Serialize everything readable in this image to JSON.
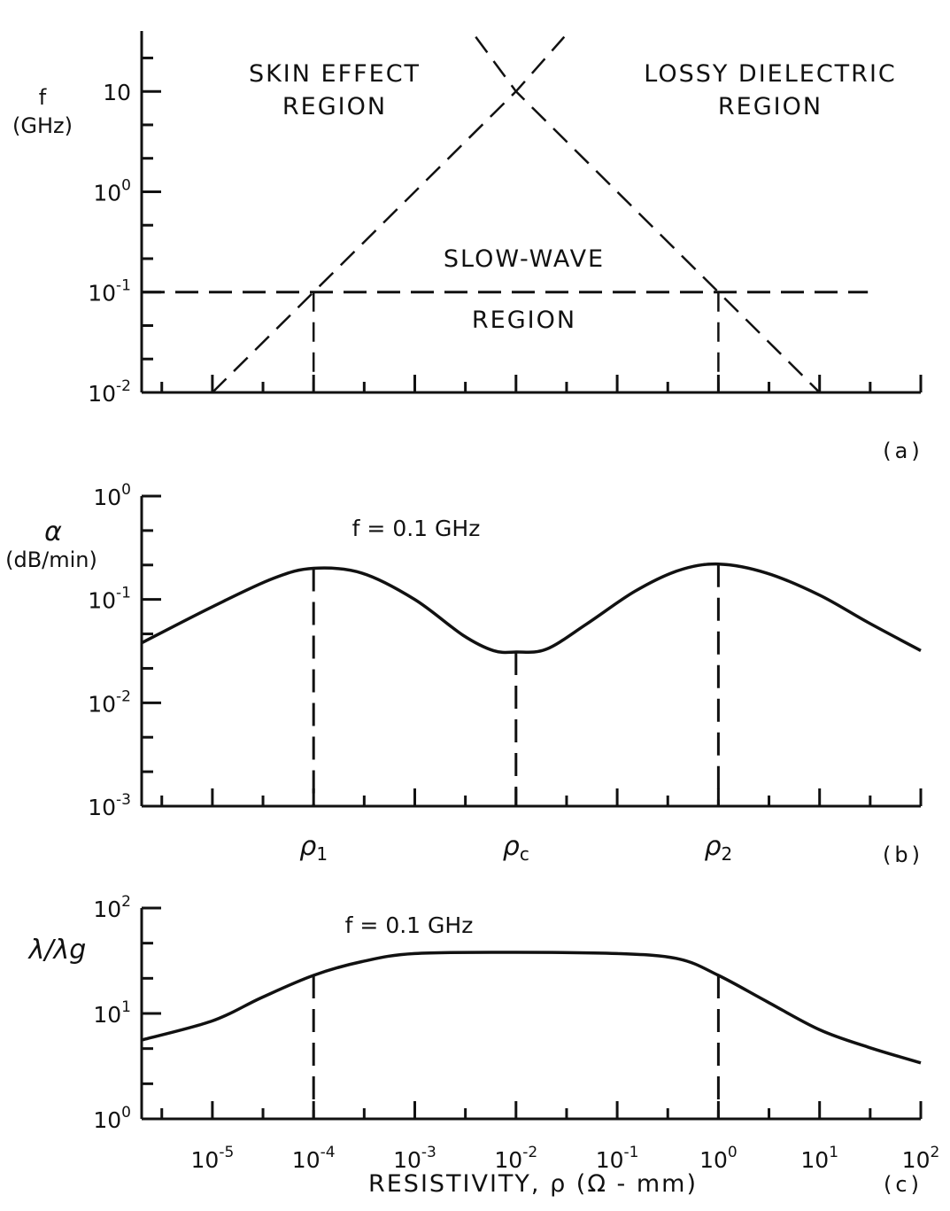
{
  "chart_data": [
    {
      "panel": "(a)",
      "type": "line",
      "ylabel": "f",
      "yunit": "(GHz)",
      "yscale": "log",
      "ylim": [
        0.01,
        40
      ],
      "xscale": "log",
      "xlim": [
        2e-06,
        100
      ],
      "yticks": [
        {
          "value": 0.01,
          "base": "10",
          "exp": "-2"
        },
        {
          "value": 0.1,
          "base": "10",
          "exp": "-1"
        },
        {
          "value": 1,
          "base": "10",
          "exp": "0"
        },
        {
          "value": 10,
          "base": "10",
          "exp": ""
        }
      ],
      "regions": [
        {
          "line1": "SKIN EFFECT",
          "line2": "REGION"
        },
        {
          "line1": "LOSSY DIELECTRIC",
          "line2": "REGION"
        },
        {
          "line1": "SLOW-WAVE",
          "line2": "REGION"
        }
      ],
      "series": [
        {
          "style": "dashed",
          "x": [
            1e-05,
            0.0001,
            0.01,
            0.03
          ],
          "y": [
            0.01,
            0.1,
            10,
            35
          ]
        },
        {
          "style": "dashed",
          "x": [
            0.004,
            0.01,
            1,
            10
          ],
          "y": [
            35,
            10,
            0.1,
            0.01
          ]
        },
        {
          "style": "dashed",
          "x": [
            2e-06,
            30
          ],
          "y": [
            0.1,
            0.1
          ]
        }
      ],
      "markers": [
        0.0001,
        1
      ],
      "marker_y": 0.1
    },
    {
      "panel": "(b)",
      "type": "line",
      "ylabel": "α",
      "yunit": "(dB/min)",
      "annotation": "f = 0.1 GHz",
      "yscale": "log",
      "ylim": [
        0.001,
        1
      ],
      "xscale": "log",
      "xlim": [
        2e-06,
        100
      ],
      "yticks": [
        {
          "value": 0.001,
          "base": "10",
          "exp": "-3"
        },
        {
          "value": 0.01,
          "base": "10",
          "exp": "-2"
        },
        {
          "value": 0.1,
          "base": "10",
          "exp": "-1"
        },
        {
          "value": 1,
          "base": "10",
          "exp": "0"
        }
      ],
      "series": [
        {
          "style": "solid",
          "x": [
            2e-06,
            1e-05,
            4e-05,
            0.0001,
            0.0003,
            0.001,
            0.003,
            0.006,
            0.01,
            0.02,
            0.05,
            0.15,
            0.4,
            1,
            3,
            10,
            30,
            100
          ],
          "y": [
            0.038,
            0.085,
            0.16,
            0.2,
            0.18,
            0.1,
            0.045,
            0.032,
            0.031,
            0.033,
            0.058,
            0.12,
            0.19,
            0.22,
            0.18,
            0.11,
            0.06,
            0.032
          ]
        }
      ],
      "markers": [
        {
          "x": 0.0001,
          "label": "ρ",
          "sub": "1"
        },
        {
          "x": 0.01,
          "label": "ρ",
          "sub": "c"
        },
        {
          "x": 1,
          "label": "ρ",
          "sub": "2"
        }
      ]
    },
    {
      "panel": "(c)",
      "type": "line",
      "ylabel": "λ/λg",
      "annotation": "f = 0.1 GHz",
      "xlabel": "RESISTIVITY, ρ (Ω - mm)",
      "yscale": "log",
      "ylim": [
        1,
        100
      ],
      "xscale": "log",
      "xlim": [
        2e-06,
        100
      ],
      "yticks": [
        {
          "value": 1,
          "base": "10",
          "exp": "0"
        },
        {
          "value": 10,
          "base": "10",
          "exp": "1"
        },
        {
          "value": 100,
          "base": "10",
          "exp": "2"
        }
      ],
      "xticks": [
        {
          "value": 1e-05,
          "base": "10",
          "exp": "-5"
        },
        {
          "value": 0.0001,
          "base": "10",
          "exp": "-4"
        },
        {
          "value": 0.001,
          "base": "10",
          "exp": "-3"
        },
        {
          "value": 0.01,
          "base": "10",
          "exp": "-2"
        },
        {
          "value": 0.1,
          "base": "10",
          "exp": "-1"
        },
        {
          "value": 1,
          "base": "10",
          "exp": "0"
        },
        {
          "value": 10,
          "base": "10",
          "exp": "1"
        },
        {
          "value": 100,
          "base": "10",
          "exp": "2"
        }
      ],
      "series": [
        {
          "style": "solid",
          "x": [
            2e-06,
            1e-05,
            3e-05,
            0.0001,
            0.0003,
            0.001,
            0.01,
            0.1,
            0.4,
            1,
            3,
            10,
            30,
            100
          ],
          "y": [
            5.6,
            8.5,
            14,
            23,
            31,
            37,
            38,
            37,
            33,
            23,
            13,
            7,
            4.8,
            3.4
          ]
        }
      ],
      "markers": [
        0.0001,
        1
      ]
    }
  ]
}
